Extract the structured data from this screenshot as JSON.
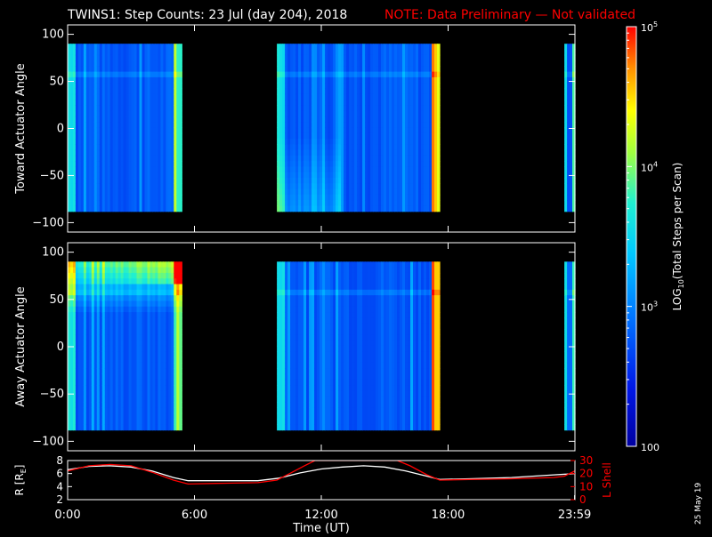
{
  "header": {
    "title": "TWINS1: Step Counts: 23 Jul (day 204), 2018",
    "note": "NOTE: Data Preliminary — Not validated"
  },
  "colors": {
    "background": "#000000",
    "axis": "#ffffff",
    "note": "#ff0000",
    "r_line": "#ffffff",
    "lshell_line": "#ff0000"
  },
  "footer": {
    "date_stamp": "25 May 19"
  },
  "colorbar": {
    "label": "LOG10(Total Steps per Scan)",
    "label_main": "LOG",
    "label_sub": "10",
    "label_rest": "(Total Steps per Scan)",
    "scale": "log",
    "range": [
      100,
      100000
    ],
    "tick_labels": [
      {
        "value": 100000,
        "base": "10",
        "exp": "5"
      },
      {
        "value": 10000,
        "base": "10",
        "exp": "4"
      },
      {
        "value": 1000,
        "base": "10",
        "exp": "3"
      },
      {
        "value": 100,
        "base": "100",
        "exp": ""
      }
    ]
  },
  "chart_data": [
    {
      "type": "heatmap",
      "id": "toward",
      "ylabel": "Toward Actuator Angle",
      "ylim": [
        -110,
        110
      ],
      "y_ticks": [
        100,
        50,
        0,
        -50,
        -100
      ],
      "y_tick_labels": [
        "100",
        "50",
        "0",
        "−50",
        "−100"
      ],
      "x_unit": "hours UT",
      "xlim": [
        0,
        24
      ],
      "coverage_hours": [
        [
          0.0,
          5.4
        ],
        [
          9.9,
          17.6
        ],
        [
          23.5,
          24.0
        ]
      ],
      "angle_range": [
        -88,
        90
      ]
    },
    {
      "type": "heatmap",
      "id": "away",
      "ylabel": "Away Actuator Angle",
      "ylim": [
        -110,
        110
      ],
      "y_ticks": [
        100,
        50,
        0,
        -50,
        -100
      ],
      "y_tick_labels": [
        "100",
        "50",
        "0",
        "−50",
        "−100"
      ],
      "x_unit": "hours UT",
      "xlim": [
        0,
        24
      ],
      "coverage_hours": [
        [
          0.0,
          5.4
        ],
        [
          9.9,
          17.6
        ],
        [
          23.5,
          24.0
        ]
      ],
      "angle_range": [
        -88,
        90
      ]
    },
    {
      "type": "line",
      "id": "orbit",
      "ylabel": "R [RE]",
      "ylabel_main": "R [R",
      "ylabel_sub": "E",
      "ylabel_close": "]",
      "y2label": "L Shell",
      "xlabel": "Time (UT)",
      "xlim": [
        0,
        24
      ],
      "x_ticks": [
        0,
        6,
        12,
        18,
        23.983
      ],
      "x_tick_labels": [
        "0:00",
        "6:00",
        "12:00",
        "18:00",
        "23:59"
      ],
      "ylim": [
        2,
        8
      ],
      "y_ticks": [
        8,
        6,
        4,
        2
      ],
      "y_tick_labels": [
        "8",
        "6",
        "4",
        "2"
      ],
      "y2lim": [
        0,
        30
      ],
      "y2_ticks": [
        30,
        20,
        10,
        0
      ],
      "y2_tick_labels": [
        "30",
        "20",
        "10",
        "0"
      ],
      "series": [
        {
          "axis": "left",
          "color": "#ffffff",
          "x": [
            0,
            1,
            2,
            3,
            4,
            5,
            5.7,
            7,
            9,
            10,
            11,
            12,
            13,
            14,
            15,
            16,
            17,
            17.6,
            19,
            21,
            23,
            24
          ],
          "y": [
            6.6,
            7.1,
            7.2,
            7.0,
            6.4,
            5.4,
            4.9,
            4.9,
            4.9,
            5.3,
            6.1,
            6.7,
            7.0,
            7.2,
            7.0,
            6.4,
            5.6,
            5.1,
            5.2,
            5.4,
            5.8,
            6.0
          ]
        },
        {
          "axis": "right",
          "color": "#ff0000",
          "x": [
            0,
            1,
            2,
            3,
            4,
            5,
            5.7,
            7,
            9,
            9.9,
            10.5,
            11.2,
            11.7,
            15.6,
            16.2,
            17.0,
            17.6,
            19,
            21,
            23,
            23.5,
            24
          ],
          "y": [
            22,
            26,
            27,
            26,
            21,
            15,
            12,
            12.5,
            13,
            15,
            20,
            26,
            30,
            30,
            26,
            19,
            15,
            15.5,
            16,
            17,
            18,
            22
          ]
        }
      ]
    }
  ]
}
